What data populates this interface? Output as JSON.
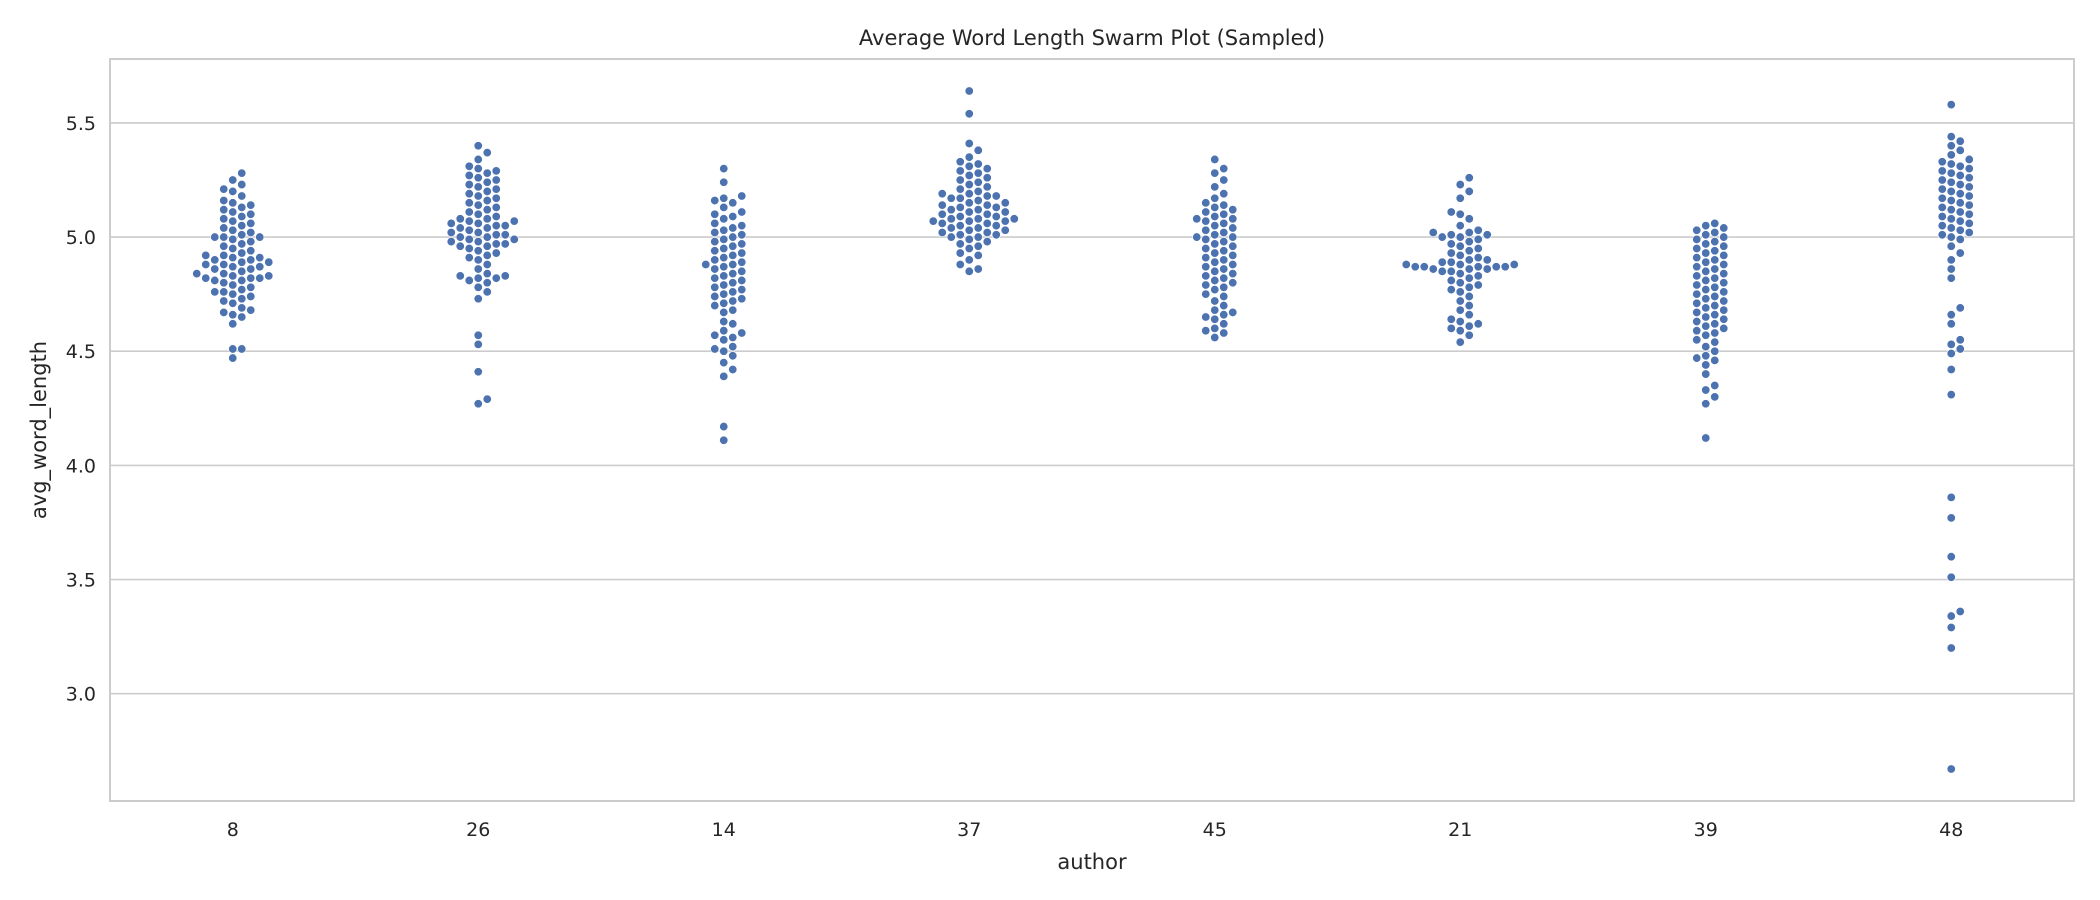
{
  "chart_data": {
    "type": "scatter",
    "subtype": "swarm",
    "title": "Average Word Length Swarm Plot (Sampled)",
    "xlabel": "author",
    "ylabel": "avg_word_length",
    "categories": [
      "8",
      "26",
      "14",
      "37",
      "45",
      "21",
      "39",
      "48"
    ],
    "ylim": [
      2.53,
      5.78
    ],
    "yticks": [
      3.0,
      3.5,
      4.0,
      4.5,
      5.0,
      5.5
    ],
    "grid": "horizontal",
    "point_color": "#4c72b0",
    "series": [
      {
        "values": [
          4.47,
          4.51,
          4.51,
          4.62,
          4.65,
          4.66,
          4.67,
          4.68,
          4.69,
          4.71,
          4.72,
          4.73,
          4.74,
          4.75,
          4.76,
          4.76,
          4.77,
          4.78,
          4.79,
          4.8,
          4.81,
          4.81,
          4.82,
          4.82,
          4.82,
          4.83,
          4.83,
          4.84,
          4.84,
          4.85,
          4.86,
          4.86,
          4.87,
          4.87,
          4.88,
          4.88,
          4.89,
          4.89,
          4.9,
          4.9,
          4.91,
          4.91,
          4.92,
          4.92,
          4.93,
          4.94,
          4.95,
          4.96,
          4.97,
          4.98,
          4.99,
          5.0,
          5.0,
          5.0,
          5.01,
          5.02,
          5.03,
          5.04,
          5.05,
          5.06,
          5.07,
          5.08,
          5.09,
          5.1,
          5.11,
          5.12,
          5.13,
          5.14,
          5.15,
          5.16,
          5.18,
          5.2,
          5.21,
          5.23,
          5.25,
          5.28
        ]
      },
      {
        "values": [
          4.27,
          4.29,
          4.41,
          4.53,
          4.57,
          4.73,
          4.76,
          4.78,
          4.8,
          4.81,
          4.82,
          4.82,
          4.83,
          4.83,
          4.84,
          4.86,
          4.88,
          4.9,
          4.91,
          4.92,
          4.93,
          4.94,
          4.95,
          4.96,
          4.96,
          4.97,
          4.97,
          4.98,
          4.98,
          4.99,
          4.99,
          5.0,
          5.0,
          5.01,
          5.01,
          5.02,
          5.02,
          5.03,
          5.04,
          5.04,
          5.05,
          5.05,
          5.06,
          5.06,
          5.07,
          5.07,
          5.08,
          5.08,
          5.09,
          5.1,
          5.11,
          5.12,
          5.13,
          5.14,
          5.15,
          5.16,
          5.17,
          5.18,
          5.19,
          5.2,
          5.21,
          5.22,
          5.23,
          5.24,
          5.25,
          5.26,
          5.27,
          5.28,
          5.29,
          5.3,
          5.31,
          5.34,
          5.37,
          5.4
        ]
      },
      {
        "values": [
          4.11,
          4.17,
          4.39,
          4.42,
          4.45,
          4.48,
          4.5,
          4.51,
          4.52,
          4.55,
          4.56,
          4.57,
          4.58,
          4.59,
          4.62,
          4.63,
          4.67,
          4.68,
          4.7,
          4.71,
          4.72,
          4.73,
          4.74,
          4.75,
          4.76,
          4.77,
          4.78,
          4.79,
          4.8,
          4.81,
          4.82,
          4.83,
          4.84,
          4.85,
          4.86,
          4.87,
          4.88,
          4.88,
          4.89,
          4.9,
          4.91,
          4.92,
          4.93,
          4.94,
          4.95,
          4.96,
          4.97,
          4.98,
          4.99,
          5.0,
          5.01,
          5.02,
          5.03,
          5.04,
          5.05,
          5.06,
          5.08,
          5.09,
          5.1,
          5.11,
          5.13,
          5.15,
          5.16,
          5.17,
          5.18,
          5.24,
          5.3
        ]
      },
      {
        "values": [
          4.85,
          4.86,
          4.88,
          4.9,
          4.92,
          4.93,
          4.95,
          4.96,
          4.97,
          4.98,
          4.99,
          5.0,
          5.0,
          5.01,
          5.01,
          5.02,
          5.02,
          5.03,
          5.03,
          5.04,
          5.04,
          5.05,
          5.05,
          5.06,
          5.06,
          5.07,
          5.07,
          5.07,
          5.08,
          5.08,
          5.08,
          5.09,
          5.09,
          5.1,
          5.1,
          5.11,
          5.11,
          5.12,
          5.12,
          5.13,
          5.13,
          5.14,
          5.14,
          5.15,
          5.15,
          5.16,
          5.17,
          5.17,
          5.18,
          5.18,
          5.19,
          5.19,
          5.2,
          5.21,
          5.22,
          5.23,
          5.24,
          5.25,
          5.26,
          5.27,
          5.28,
          5.29,
          5.3,
          5.31,
          5.32,
          5.33,
          5.35,
          5.38,
          5.41,
          5.54,
          5.64
        ]
      },
      {
        "values": [
          4.56,
          4.58,
          4.59,
          4.6,
          4.62,
          4.64,
          4.65,
          4.66,
          4.67,
          4.68,
          4.7,
          4.72,
          4.74,
          4.75,
          4.77,
          4.78,
          4.79,
          4.8,
          4.81,
          4.82,
          4.83,
          4.84,
          4.85,
          4.86,
          4.87,
          4.88,
          4.89,
          4.9,
          4.91,
          4.92,
          4.93,
          4.94,
          4.95,
          4.96,
          4.97,
          4.98,
          4.99,
          5.0,
          5.0,
          5.01,
          5.02,
          5.03,
          5.04,
          5.05,
          5.06,
          5.07,
          5.08,
          5.08,
          5.09,
          5.1,
          5.11,
          5.12,
          5.13,
          5.14,
          5.15,
          5.17,
          5.19,
          5.22,
          5.25,
          5.28,
          5.3,
          5.34
        ]
      },
      {
        "values": [
          4.54,
          4.57,
          4.59,
          4.6,
          4.61,
          4.62,
          4.63,
          4.64,
          4.66,
          4.68,
          4.7,
          4.72,
          4.74,
          4.76,
          4.77,
          4.78,
          4.79,
          4.8,
          4.81,
          4.82,
          4.83,
          4.84,
          4.85,
          4.85,
          4.86,
          4.86,
          4.86,
          4.87,
          4.87,
          4.87,
          4.87,
          4.87,
          4.88,
          4.88,
          4.88,
          4.89,
          4.89,
          4.9,
          4.9,
          4.91,
          4.92,
          4.93,
          4.94,
          4.95,
          4.96,
          4.97,
          4.98,
          4.99,
          5.0,
          5.0,
          5.01,
          5.01,
          5.02,
          5.02,
          5.03,
          5.05,
          5.08,
          5.1,
          5.11,
          5.17,
          5.2,
          5.23,
          5.26
        ]
      },
      {
        "values": [
          4.12,
          4.27,
          4.3,
          4.33,
          4.35,
          4.4,
          4.44,
          4.46,
          4.47,
          4.48,
          4.5,
          4.52,
          4.54,
          4.55,
          4.57,
          4.58,
          4.59,
          4.6,
          4.61,
          4.62,
          4.63,
          4.64,
          4.65,
          4.66,
          4.67,
          4.68,
          4.69,
          4.7,
          4.71,
          4.72,
          4.73,
          4.74,
          4.75,
          4.76,
          4.77,
          4.78,
          4.79,
          4.8,
          4.81,
          4.82,
          4.83,
          4.84,
          4.85,
          4.86,
          4.87,
          4.88,
          4.89,
          4.9,
          4.91,
          4.92,
          4.93,
          4.94,
          4.95,
          4.96,
          4.97,
          4.98,
          4.99,
          5.0,
          5.01,
          5.02,
          5.03,
          5.04,
          5.05,
          5.06
        ]
      },
      {
        "values": [
          2.67,
          3.2,
          3.29,
          3.34,
          3.36,
          3.51,
          3.6,
          3.77,
          3.86,
          4.31,
          4.42,
          4.49,
          4.51,
          4.53,
          4.55,
          4.62,
          4.66,
          4.69,
          4.82,
          4.86,
          4.9,
          4.93,
          4.96,
          4.99,
          5.0,
          5.01,
          5.02,
          5.03,
          5.04,
          5.05,
          5.06,
          5.07,
          5.08,
          5.09,
          5.1,
          5.11,
          5.12,
          5.13,
          5.14,
          5.15,
          5.16,
          5.17,
          5.18,
          5.19,
          5.2,
          5.21,
          5.22,
          5.23,
          5.24,
          5.25,
          5.26,
          5.27,
          5.28,
          5.29,
          5.3,
          5.31,
          5.32,
          5.33,
          5.34,
          5.36,
          5.38,
          5.4,
          5.42,
          5.44,
          5.58
        ]
      }
    ]
  }
}
